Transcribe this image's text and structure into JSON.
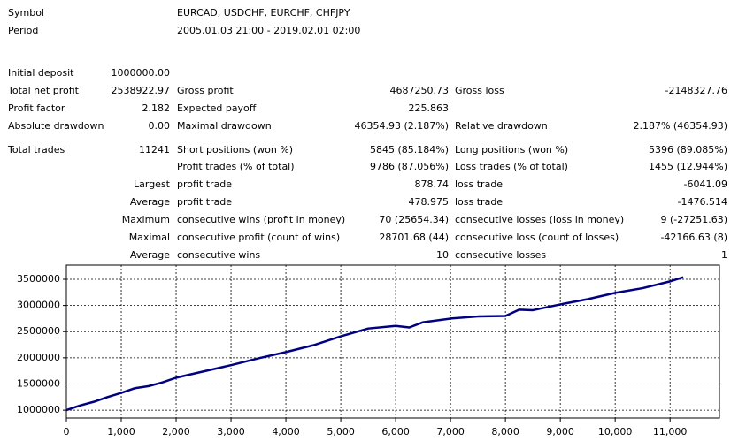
{
  "report": {
    "rows": [
      [
        "Symbol",
        null,
        "EURCAD, USDCHF, EURCHF, CHFJPY",
        null,
        null,
        null
      ],
      [
        "Period",
        null,
        "2005.01.03 21:00 - 2019.02.01 02:00",
        null,
        null,
        null
      ],
      [
        "Initial deposit",
        "1000000.00",
        null,
        null,
        null,
        null
      ],
      [
        "Total net profit",
        "2538922.97",
        "Gross profit",
        "4687250.73",
        "Gross loss",
        "-2148327.76"
      ],
      [
        "Profit factor",
        "2.182",
        "Expected payoff",
        "225.863",
        null,
        null
      ],
      [
        "Absolute drawdown",
        "0.00",
        "Maximal drawdown",
        "46354.93 (2.187%)",
        "Relative drawdown",
        "2.187% (46354.93)"
      ],
      [
        "Total trades",
        "11241",
        "Short positions (won %)",
        "5845 (85.184%)",
        "Long positions (won %)",
        "5396 (89.085%)"
      ],
      [
        null,
        null,
        "Profit trades (% of total)",
        "9786 (87.056%)",
        "Loss trades (% of total)",
        "1455 (12.944%)"
      ],
      [
        null,
        "Largest",
        "profit trade",
        "878.74",
        "loss trade",
        "-6041.09"
      ],
      [
        null,
        "Average",
        "profit trade",
        "478.975",
        "loss trade",
        "-1476.514"
      ],
      [
        null,
        "Maximum",
        "consecutive wins (profit in money)",
        "70 (25654.34)",
        "consecutive losses (loss in money)",
        "9 (-27251.63)"
      ],
      [
        null,
        "Maximal",
        "consecutive profit (count of wins)",
        "28701.68 (44)",
        "consecutive loss (count of losses)",
        "-42166.63 (8)"
      ],
      [
        null,
        "Average",
        "consecutive wins",
        "10",
        "consecutive losses",
        "1"
      ]
    ]
  },
  "chart_data": {
    "type": "line",
    "x": [
      0,
      250,
      500,
      750,
      1000,
      1250,
      1500,
      1750,
      2000,
      2500,
      3000,
      3500,
      4000,
      4500,
      5000,
      5500,
      6000,
      6250,
      6500,
      7000,
      7500,
      8000,
      8250,
      8500,
      9000,
      9500,
      10000,
      10500,
      11000,
      11241
    ],
    "series": [
      {
        "color": "#000080",
        "values": [
          1000000,
          1090000,
          1160000,
          1250000,
          1330000,
          1420000,
          1460000,
          1530000,
          1620000,
          1740000,
          1860000,
          1990000,
          2110000,
          2240000,
          2410000,
          2560000,
          2610000,
          2580000,
          2680000,
          2750000,
          2790000,
          2800000,
          2920000,
          2910000,
          3020000,
          3120000,
          3240000,
          3330000,
          3460000,
          3538923
        ]
      }
    ],
    "xlim": [
      0,
      11900
    ],
    "ylim": [
      850000,
      3770000
    ],
    "xticks": [
      0,
      {
        "value": 1000,
        "label": "1,000"
      },
      {
        "value": 2000,
        "label": "2,000"
      },
      {
        "value": 3000,
        "label": "3,000"
      },
      {
        "value": 4000,
        "label": "4,000"
      },
      {
        "value": 5000,
        "label": "5,000"
      },
      {
        "value": 6000,
        "label": "6,000"
      },
      {
        "value": 7000,
        "label": "7,000"
      },
      {
        "value": 8000,
        "label": "8,000"
      },
      {
        "value": 9000,
        "label": "9,000"
      },
      {
        "value": 10000,
        "label": "10,000"
      },
      {
        "value": 11000,
        "label": "11,000"
      }
    ],
    "yticks": [
      1000000,
      1500000,
      2000000,
      2500000,
      3000000,
      3500000
    ],
    "grid": true
  }
}
